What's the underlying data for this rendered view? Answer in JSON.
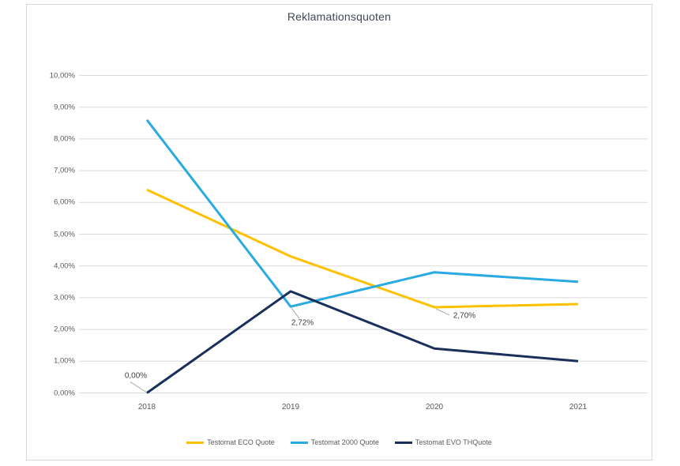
{
  "chart_data": {
    "type": "line",
    "title": "Reklamationsquoten",
    "categories": [
      "2018",
      "2019",
      "2020",
      "2021"
    ],
    "series": [
      {
        "name": "Testomat ECO Quote",
        "color": "#FFC000",
        "values": [
          6.4,
          4.3,
          2.7,
          2.8
        ]
      },
      {
        "name": "Testomat 2000 Quote",
        "color": "#29ABE2",
        "values": [
          8.6,
          2.72,
          3.8,
          3.5
        ]
      },
      {
        "name": "Testomat EVO THQuote",
        "color": "#1A2F5A",
        "values": [
          0.0,
          3.2,
          1.4,
          1.0
        ]
      }
    ],
    "y_ticks": [
      {
        "value": 10,
        "label": "10,00%"
      },
      {
        "value": 9,
        "label": "9,00%"
      },
      {
        "value": 8,
        "label": "8,00%"
      },
      {
        "value": 7,
        "label": "7,00%"
      },
      {
        "value": 6,
        "label": "6,00%"
      },
      {
        "value": 5,
        "label": "5,00%"
      },
      {
        "value": 4,
        "label": "4,00%"
      },
      {
        "value": 3,
        "label": "3,00%"
      },
      {
        "value": 2,
        "label": "2,00%"
      },
      {
        "value": 1,
        "label": "1,00%"
      },
      {
        "value": 0,
        "label": "0,00%"
      }
    ],
    "annotations": [
      {
        "series": "Testomat EVO THQuote",
        "category": "2018",
        "text": "0,00%"
      },
      {
        "series": "Testomat 2000 Quote",
        "category": "2019",
        "text": "2,72%"
      },
      {
        "series": "Testomat ECO Quote",
        "category": "2020",
        "text": "2,70%"
      }
    ],
    "ylim": [
      0,
      10
    ],
    "grid": true,
    "legend_position": "bottom"
  },
  "colors": {
    "gridline": "#d9d9d9",
    "frame_border": "#d7d7d7",
    "leader_line": "#a6a6a6",
    "title_text": "#404756",
    "axis_text": "#595959",
    "data_label_text": "#404040"
  }
}
